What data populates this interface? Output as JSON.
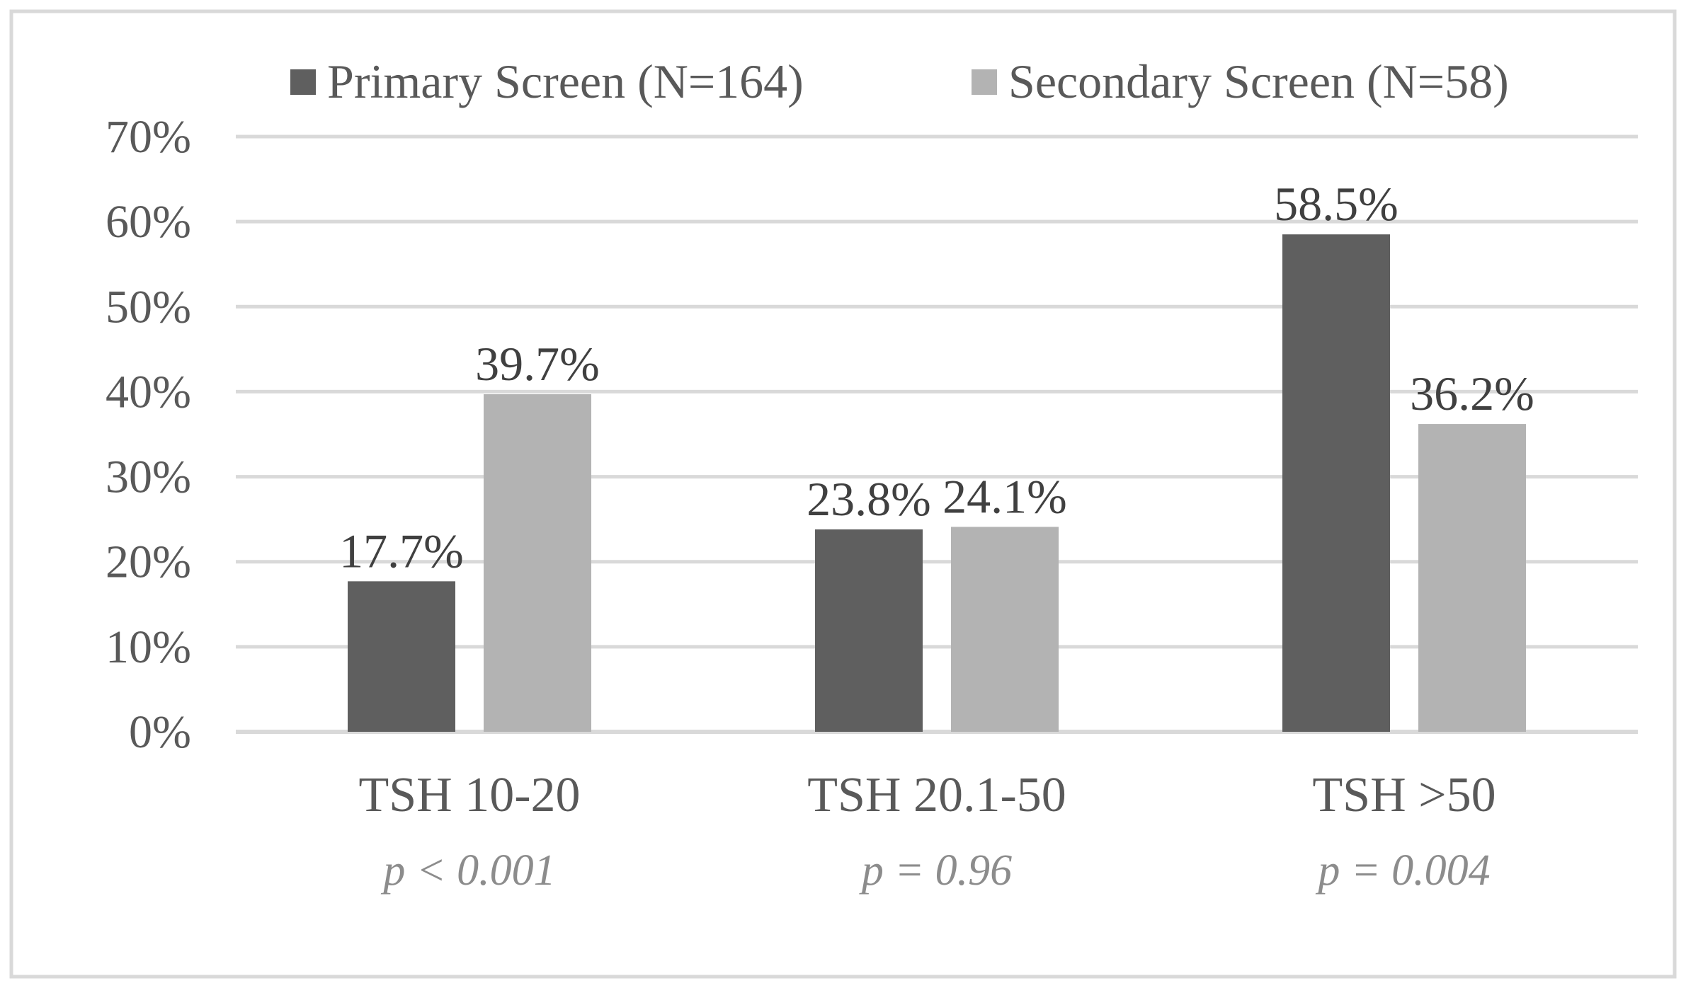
{
  "chart_data": {
    "type": "bar",
    "categories": [
      "TSH 10-20",
      "TSH 20.1-50",
      "TSH >50"
    ],
    "p_values": [
      "p < 0.001",
      "p = 0.96",
      "p = 0.004"
    ],
    "series": [
      {
        "name": "Primary Screen (N=164)",
        "values": [
          17.7,
          23.8,
          58.5
        ],
        "labels": [
          "17.7%",
          "23.8%",
          "58.5%"
        ],
        "color": "#5f5f5f"
      },
      {
        "name": "Secondary Screen (N=58)",
        "values": [
          39.7,
          24.1,
          36.2
        ],
        "labels": [
          "39.7%",
          "24.1%",
          "36.2%"
        ],
        "color": "#b3b3b3"
      }
    ],
    "y_ticks": [
      "0%",
      "10%",
      "20%",
      "30%",
      "40%",
      "50%",
      "60%",
      "70%"
    ],
    "ylim": [
      0,
      70
    ],
    "grid": true,
    "legend_position": "top-center",
    "gridline_color": "#d9d9d9",
    "border_color": "#d9d9d9"
  }
}
